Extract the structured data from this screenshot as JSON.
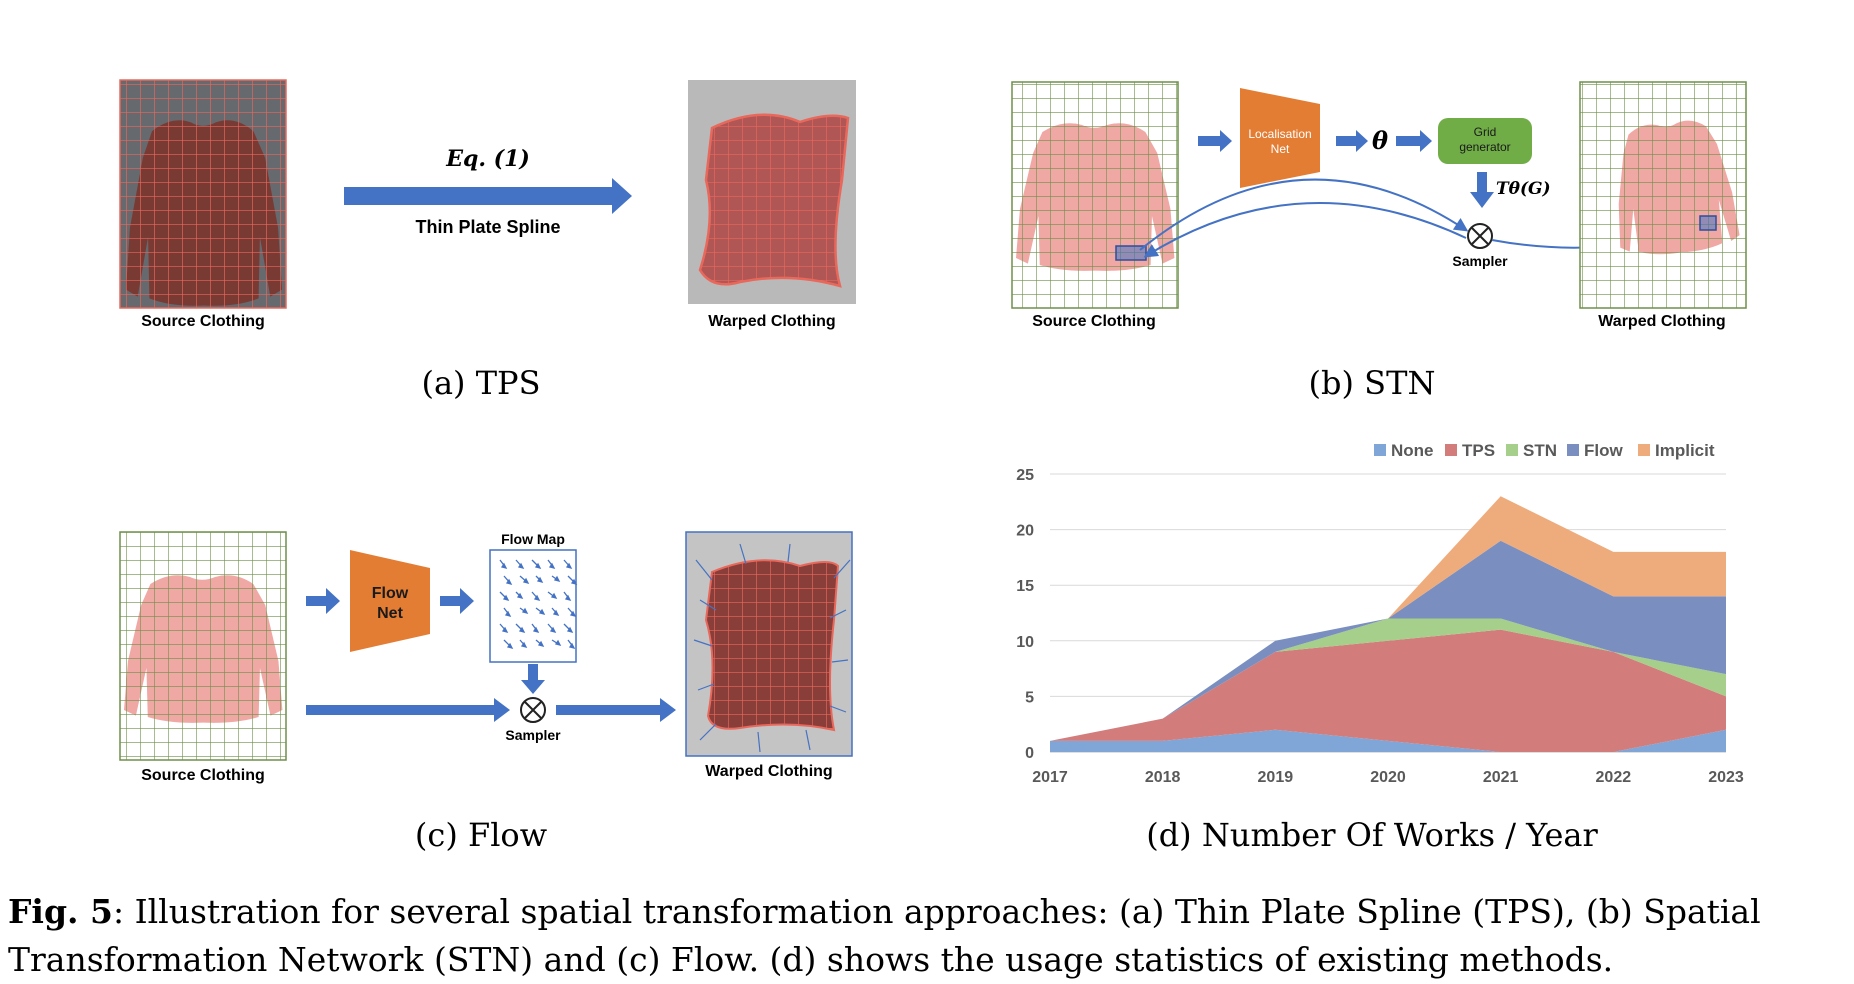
{
  "panel_a": {
    "source_label": "Source Clothing",
    "arrow_top_label": "Eq. (1)",
    "arrow_bottom_label": "Thin Plate Spline",
    "warped_label": "Warped Clothing",
    "subcaption": "(a) TPS"
  },
  "panel_b": {
    "source_label": "Source Clothing",
    "localisation_label_1": "Localisation",
    "localisation_label_2": "Net",
    "theta_label": "θ",
    "grid_label_1": "Grid",
    "grid_label_2": "generator",
    "transform_label": "Tθ(G)",
    "sampler_label": "Sampler",
    "warped_label": "Warped Clothing",
    "subcaption": "(b) STN"
  },
  "panel_c": {
    "source_label": "Source Clothing",
    "flownet_label_1": "Flow",
    "flownet_label_2": "Net",
    "flowmap_label": "Flow Map",
    "sampler_label": "Sampler",
    "warped_label": "Warped Clothing",
    "subcaption": "(c) Flow"
  },
  "panel_d": {
    "subcaption": "(d) Number Of Works / Year"
  },
  "caption": {
    "prefix": "Fig. 5",
    "text": ": Illustration for several spatial transformation approaches: (a) Thin Plate Spline (TPS), (b) Spatial Transformation Network (STN) and (c) Flow. (d) shows the usage statistics of existing methods."
  },
  "colors": {
    "arrow": "#4472c4",
    "orange_box": "#e47d34",
    "green_box": "#70ad47",
    "grid_red": "#e8685c",
    "grid_green": "#6e8f4a",
    "shirt_dark": "#7a3a34",
    "shirt_pink": "#f0a8a4"
  },
  "chart_data": {
    "type": "area",
    "stacked": true,
    "categories": [
      "2017",
      "2018",
      "2019",
      "2020",
      "2021",
      "2022",
      "2023"
    ],
    "series": [
      {
        "name": "None",
        "color": "#7fa6d6",
        "values": [
          1,
          1,
          2,
          1,
          0,
          0,
          2
        ]
      },
      {
        "name": "TPS",
        "color": "#d37c7c",
        "values": [
          0,
          2,
          7,
          9,
          11,
          9,
          3
        ]
      },
      {
        "name": "STN",
        "color": "#a5cf8a",
        "values": [
          0,
          0,
          0,
          2,
          1,
          0,
          2
        ]
      },
      {
        "name": "Flow",
        "color": "#7a8fbf",
        "values": [
          0,
          0,
          1,
          0,
          7,
          5,
          7
        ]
      },
      {
        "name": "Implicit",
        "color": "#eeab7c",
        "values": [
          0,
          0,
          0,
          0,
          4,
          4,
          4
        ]
      }
    ],
    "ylim": [
      0,
      25
    ],
    "yticks": [
      0,
      5,
      10,
      15,
      20,
      25
    ],
    "grid": true,
    "legend": "top"
  }
}
